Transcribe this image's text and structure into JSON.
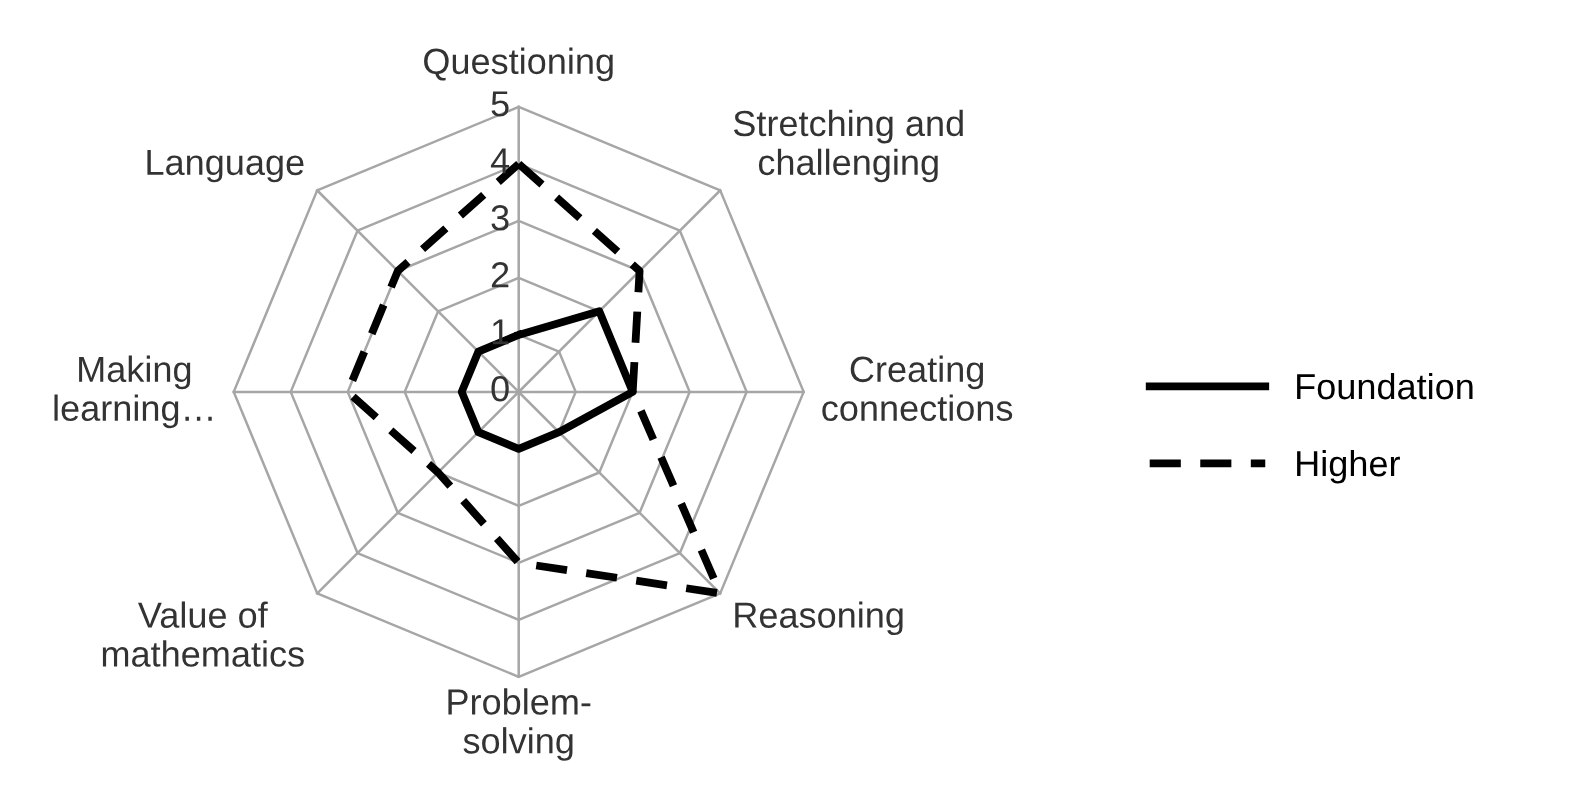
{
  "chart_data": {
    "type": "radar",
    "categories": [
      "Questioning",
      "Stretching and\nchallenging",
      "Creating\nconnections",
      "Reasoning",
      "Problem-\nsolving",
      "Value of\nmathematics",
      "Making\nlearning…",
      "Language"
    ],
    "series": [
      {
        "name": "Foundation",
        "color": "#000000",
        "line_style": "solid",
        "values": [
          1,
          2,
          2,
          1,
          1,
          1,
          1,
          1
        ]
      },
      {
        "name": "Higher",
        "color": "#000000",
        "line_style": "dashed",
        "values": [
          4,
          3,
          2,
          5,
          3,
          2,
          3,
          3
        ]
      }
    ],
    "ylim": [
      0,
      5
    ],
    "yticks": [
      0,
      1,
      2,
      3,
      4,
      5
    ],
    "grid": true,
    "legend": "right",
    "marker": "none"
  }
}
